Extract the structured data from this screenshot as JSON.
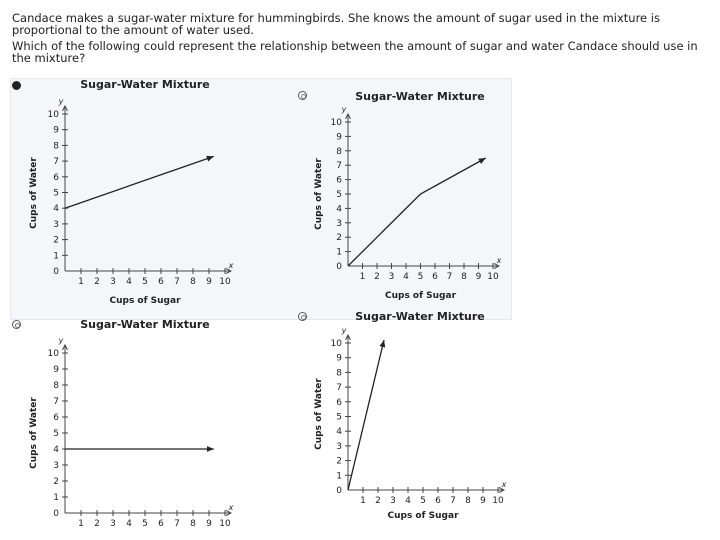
{
  "question": {
    "line1": "Candace makes a sugar-water mixture for hummingbirds. She knows the amount of sugar used in the mixture is proportional to the amount of water used.",
    "line2": "Which of the following could represent the relationship between the amount of sugar and water Candace should use in the mixture?"
  },
  "options": [
    {
      "id": "a",
      "selected": true
    },
    {
      "id": "b",
      "selected": false
    },
    {
      "id": "c",
      "selected": false
    },
    {
      "id": "d",
      "selected": false
    }
  ],
  "chart_data": [
    {
      "type": "line",
      "title": "Sugar-Water Mixture",
      "xlabel": "Cups of Sugar",
      "ylabel": "Cups of Water",
      "x_var": "x",
      "y_var": "y",
      "origin_label": "0",
      "xlim": [
        0,
        10
      ],
      "ylim": [
        0,
        10
      ],
      "xticks": [
        1,
        2,
        3,
        4,
        5,
        6,
        7,
        8,
        9,
        10
      ],
      "yticks": [
        1,
        2,
        3,
        4,
        5,
        6,
        7,
        8,
        9,
        10
      ],
      "grid": false,
      "series": [
        {
          "x": [
            0,
            9.3
          ],
          "y": [
            4,
            7.3
          ],
          "arrow_end": true
        }
      ]
    },
    {
      "type": "line",
      "title": "Sugar-Water Mixture",
      "xlabel": "Cups of Sugar",
      "ylabel": "Cups of Water",
      "x_var": "x",
      "y_var": "y",
      "origin_label": "0",
      "xlim": [
        0,
        10
      ],
      "ylim": [
        0,
        10
      ],
      "xticks": [
        1,
        2,
        3,
        4,
        5,
        6,
        7,
        8,
        9,
        10
      ],
      "yticks": [
        1,
        2,
        3,
        4,
        5,
        6,
        7,
        8,
        9,
        10
      ],
      "grid": false,
      "series": [
        {
          "x": [
            0,
            5,
            9.5
          ],
          "y": [
            0,
            5,
            7.5
          ],
          "arrow_end": true
        }
      ]
    },
    {
      "type": "line",
      "title": "Sugar-Water Mixture",
      "xlabel": "",
      "ylabel": "Cups of Water",
      "x_var": "x",
      "y_var": "y",
      "origin_label": "0",
      "xlim": [
        0,
        10
      ],
      "ylim": [
        0,
        10
      ],
      "xticks": [
        1,
        2,
        3,
        4,
        5,
        6,
        7,
        8,
        9,
        10
      ],
      "yticks": [
        1,
        2,
        3,
        4,
        5,
        6,
        7,
        8,
        9,
        10
      ],
      "grid": false,
      "series": [
        {
          "x": [
            0,
            9.3
          ],
          "y": [
            4,
            4
          ],
          "arrow_end": true
        }
      ]
    },
    {
      "type": "line",
      "title": "Sugar-Water Mixture",
      "xlabel": "Cups of Sugar",
      "ylabel": "Cups of Water",
      "x_var": "x",
      "y_var": "y",
      "origin_label": "0",
      "xlim": [
        0,
        10
      ],
      "ylim": [
        0,
        10
      ],
      "xticks": [
        1,
        2,
        3,
        4,
        5,
        6,
        7,
        8,
        9,
        10
      ],
      "yticks": [
        1,
        2,
        3,
        4,
        5,
        6,
        7,
        8,
        9,
        10
      ],
      "grid": false,
      "series": [
        {
          "x": [
            0,
            2.4
          ],
          "y": [
            0,
            10.2
          ],
          "arrow_end": true
        }
      ]
    }
  ]
}
